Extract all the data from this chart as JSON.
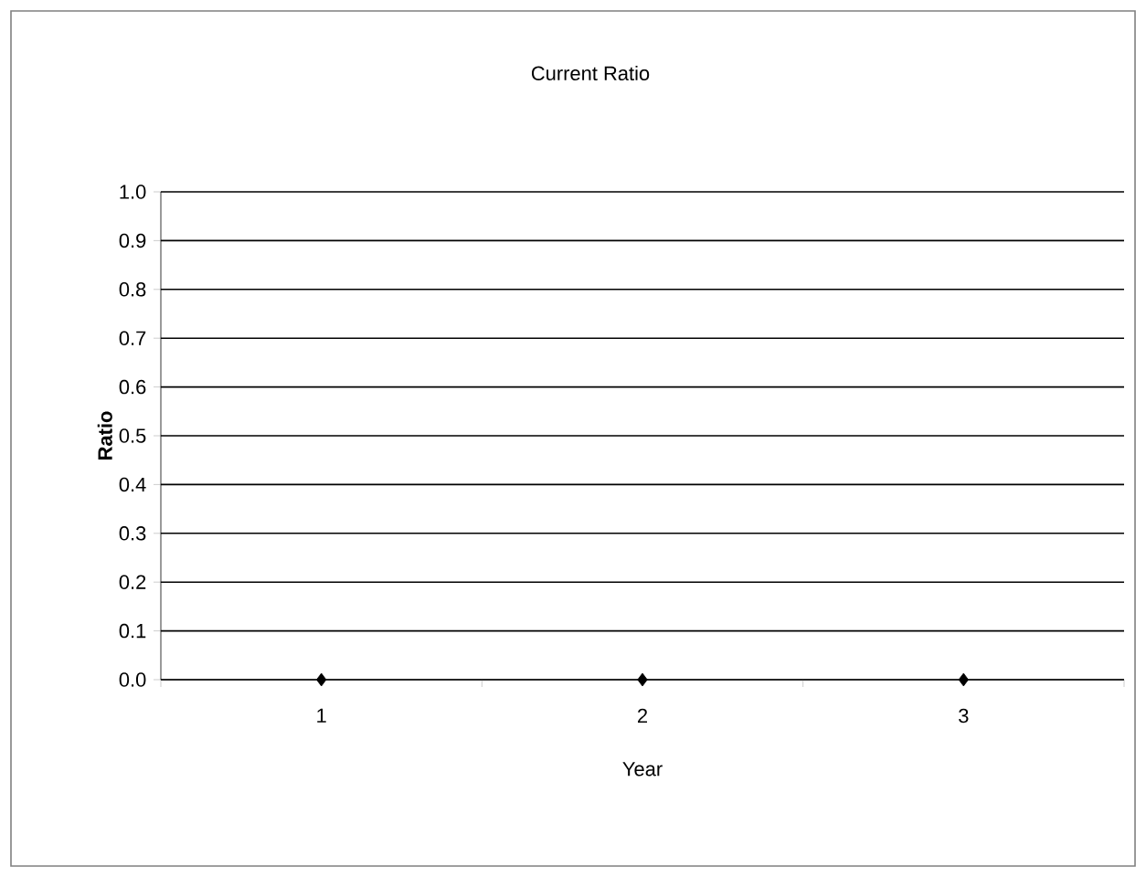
{
  "chart_data": {
    "type": "scatter",
    "title": "Current Ratio",
    "xlabel": "Year",
    "ylabel": "Ratio",
    "categories": [
      "1",
      "2",
      "3"
    ],
    "series": [
      {
        "color": "#000000",
        "values": [
          0,
          0,
          0
        ]
      }
    ],
    "marker": "diamond",
    "ylim": [
      0,
      1
    ],
    "yticks": [
      {
        "value": 0,
        "label": "0.0"
      },
      {
        "value": 0.1,
        "label": "0.1"
      },
      {
        "value": 0.2,
        "label": "0.2"
      },
      {
        "value": 0.3,
        "label": "0.3"
      },
      {
        "value": 0.4,
        "label": "0.4"
      },
      {
        "value": 0.5,
        "label": "0.5"
      },
      {
        "value": 0.6,
        "label": "0.6"
      },
      {
        "value": 0.7,
        "label": "0.7"
      },
      {
        "value": 0.8,
        "label": "0.8"
      },
      {
        "value": 0.9,
        "label": "0.9"
      },
      {
        "value": 1,
        "label": "1.0"
      }
    ],
    "grid": "y"
  }
}
